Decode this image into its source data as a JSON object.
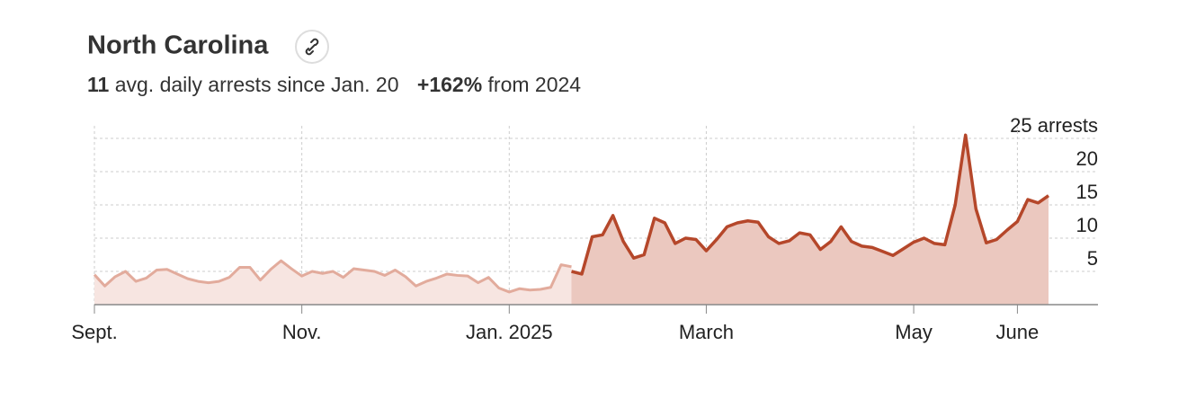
{
  "chart_data": {
    "type": "area",
    "title": "North Carolina",
    "stats": [
      {
        "value": "11",
        "text": "avg. daily arrests since Jan. 20"
      },
      {
        "value": "+162%",
        "text": "from 2024"
      }
    ],
    "categories": [
      "Sept.",
      null,
      null,
      null,
      null,
      null,
      null,
      null,
      null,
      null,
      null,
      null,
      null,
      null,
      null,
      null,
      null,
      null,
      null,
      null,
      "Nov.",
      null,
      null,
      null,
      null,
      null,
      null,
      null,
      null,
      null,
      null,
      null,
      null,
      null,
      null,
      null,
      null,
      null,
      null,
      null,
      "Jan. 2025",
      null,
      null,
      null,
      null,
      null,
      null,
      null,
      null,
      null,
      null,
      null,
      null,
      null,
      null,
      null,
      null,
      null,
      null,
      "March",
      null,
      null,
      null,
      null,
      null,
      null,
      null,
      null,
      null,
      null,
      null,
      null,
      null,
      null,
      null,
      null,
      null,
      null,
      null,
      "May",
      null,
      null,
      null,
      null,
      null,
      null,
      null,
      null,
      null,
      "June",
      null,
      null,
      null
    ],
    "series": [
      {
        "color": "#e2ab9c",
        "fill": "#f7e5e1",
        "values": [
          4.5,
          2.8,
          4.2,
          5.0,
          3.5,
          4.0,
          5.2,
          5.3,
          4.6,
          3.9,
          3.5,
          3.3,
          3.5,
          4.1,
          5.6,
          5.6,
          3.7,
          5.3,
          6.6,
          5.4,
          4.3,
          5.0,
          4.7,
          5.0,
          4.1,
          5.4,
          5.2,
          5.0,
          4.4,
          5.2,
          4.2,
          2.8,
          3.5,
          4.0,
          4.6,
          4.4,
          4.3,
          3.3,
          4.1,
          2.5,
          1.9,
          2.4,
          2.2,
          2.3,
          2.6,
          6.0,
          5.7,
          null,
          null,
          null,
          null,
          null,
          null,
          null,
          null,
          null,
          null,
          null,
          null,
          null,
          null,
          null,
          null,
          null,
          null,
          null,
          null,
          null,
          null,
          null,
          null,
          null,
          null,
          null,
          null,
          null,
          null,
          null,
          null,
          null,
          null,
          null,
          null,
          null,
          null,
          null,
          null,
          null,
          null,
          null,
          null,
          null,
          null
        ]
      },
      {
        "color": "#b5472a",
        "fill": "#ebc8bf",
        "values": [
          null,
          null,
          null,
          null,
          null,
          null,
          null,
          null,
          null,
          null,
          null,
          null,
          null,
          null,
          null,
          null,
          null,
          null,
          null,
          null,
          null,
          null,
          null,
          null,
          null,
          null,
          null,
          null,
          null,
          null,
          null,
          null,
          null,
          null,
          null,
          null,
          null,
          null,
          null,
          null,
          null,
          null,
          null,
          null,
          null,
          null,
          5.0,
          4.6,
          10.2,
          10.5,
          13.4,
          9.5,
          7.0,
          7.5,
          13.0,
          12.3,
          9.2,
          10.0,
          9.8,
          8.1,
          9.8,
          11.7,
          12.3,
          12.6,
          12.4,
          10.2,
          9.2,
          9.6,
          10.8,
          10.5,
          8.3,
          9.5,
          11.7,
          9.5,
          8.8,
          8.6,
          8.0,
          7.4,
          8.4,
          9.4,
          10.0,
          9.2,
          9.0,
          15.0,
          25.5,
          14.4,
          9.3,
          9.8,
          11.2,
          12.5,
          15.8,
          15.3,
          16.4
        ]
      }
    ],
    "ylim": [
      0,
      26
    ],
    "yticks": [
      5,
      10,
      15,
      20,
      {
        "value": 25,
        "label": "25 arrests"
      }
    ],
    "grid": true
  }
}
